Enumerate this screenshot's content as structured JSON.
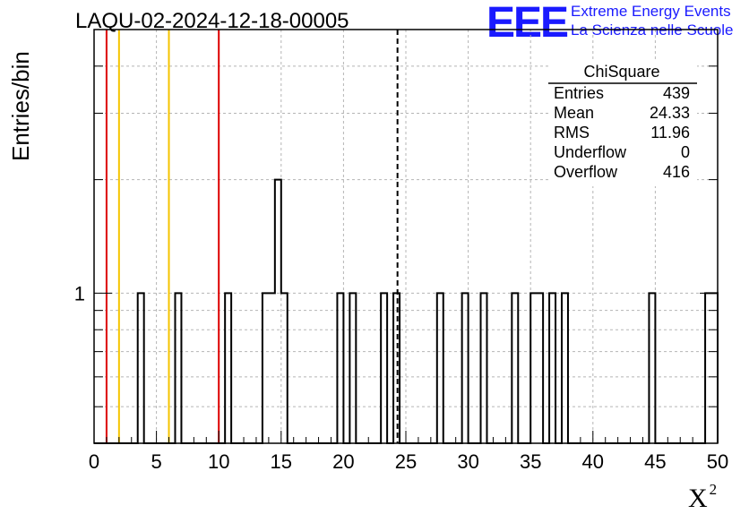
{
  "header": {
    "run_title": "LAQU-02-2024-12-18-00005",
    "logo_text": "EEE",
    "logo_line1": "Extreme Energy Events",
    "logo_line2": "La Scienza nelle Scuole"
  },
  "colors": {
    "logo": "#1a1aff",
    "red_lines": "#dd0000",
    "yellow_lines": "#f5c400",
    "grid": "#b5b5b5"
  },
  "chart_data": {
    "type": "bar",
    "title": "LAQU-02-2024-12-18-00005",
    "xlabel": "X",
    "xlabel_superscript": "2",
    "ylabel": "Entries/bin",
    "xlim": [
      0,
      50
    ],
    "y_scale": "log",
    "ylim": [
      0.4,
      5
    ],
    "x_ticks": [
      0,
      5,
      10,
      15,
      20,
      25,
      30,
      35,
      40,
      45,
      50
    ],
    "y_tick_labels": [
      {
        "value": 1,
        "label": "1"
      }
    ],
    "grid": true,
    "bin_width": 0.5,
    "bins": [
      {
        "x": 3.5,
        "count": 1
      },
      {
        "x": 6.5,
        "count": 1
      },
      {
        "x": 10.5,
        "count": 1
      },
      {
        "x": 13.5,
        "count": 1
      },
      {
        "x": 14.0,
        "count": 1
      },
      {
        "x": 14.5,
        "count": 2
      },
      {
        "x": 15.0,
        "count": 1
      },
      {
        "x": 19.5,
        "count": 1
      },
      {
        "x": 20.5,
        "count": 1
      },
      {
        "x": 23.0,
        "count": 1
      },
      {
        "x": 24.0,
        "count": 1
      },
      {
        "x": 27.5,
        "count": 1
      },
      {
        "x": 29.5,
        "count": 1
      },
      {
        "x": 31.0,
        "count": 1
      },
      {
        "x": 33.5,
        "count": 1
      },
      {
        "x": 35.0,
        "count": 1
      },
      {
        "x": 35.5,
        "count": 1
      },
      {
        "x": 36.5,
        "count": 1
      },
      {
        "x": 37.5,
        "count": 1
      },
      {
        "x": 44.5,
        "count": 1
      },
      {
        "x": 49.0,
        "count": 1
      },
      {
        "x": 49.5,
        "count": 1
      }
    ],
    "vertical_lines": [
      {
        "x": 1,
        "color": "red",
        "style": "solid"
      },
      {
        "x": 2,
        "color": "yellow",
        "style": "solid"
      },
      {
        "x": 6,
        "color": "yellow",
        "style": "solid"
      },
      {
        "x": 10,
        "color": "red",
        "style": "solid"
      },
      {
        "x": 24.33,
        "color": "black",
        "style": "dashed"
      }
    ],
    "stats_box": {
      "title": "ChiSquare",
      "placement": "top-right",
      "rows": [
        {
          "label": "Entries",
          "value": "439"
        },
        {
          "label": "Mean",
          "value": "24.33"
        },
        {
          "label": "RMS",
          "value": "11.96"
        },
        {
          "label": "Underflow",
          "value": "0"
        },
        {
          "label": "Overflow",
          "value": "416"
        }
      ]
    }
  }
}
